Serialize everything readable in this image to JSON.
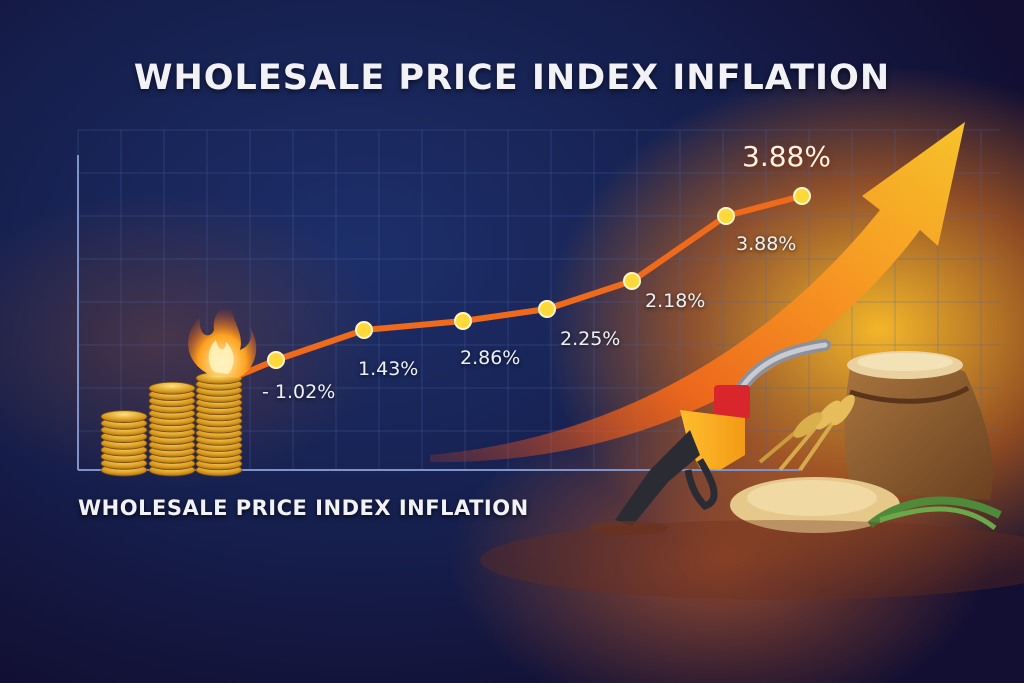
{
  "title": "WHOLESALE PRICE INDEX INFLATION",
  "subtitle": "WHOLESALE PRICE INDEX INFLATION",
  "peak_label": "3.88%",
  "colors": {
    "line": "#ef6a1a",
    "marker": "#ffd93a",
    "arrow": "#ffb21c",
    "grid": "#4a66a8"
  },
  "icons": [
    "coin-stack-icon",
    "fire-icon",
    "fuel-nozzle-icon",
    "grain-sack-icon",
    "wheat-icon"
  ],
  "chart_data": {
    "type": "line",
    "title": "WHOLESALE PRICE INDEX INFLATION",
    "series": [
      {
        "values": [
          -1.02,
          1.43,
          2.86,
          2.25,
          2.18,
          3.88,
          3.88
        ],
        "labels": [
          "- 1.02%",
          "1.43%",
          "2.86%",
          "2.25%",
          "2.18%",
          "3.88%",
          null
        ]
      }
    ],
    "grid": true,
    "legend": "none"
  }
}
